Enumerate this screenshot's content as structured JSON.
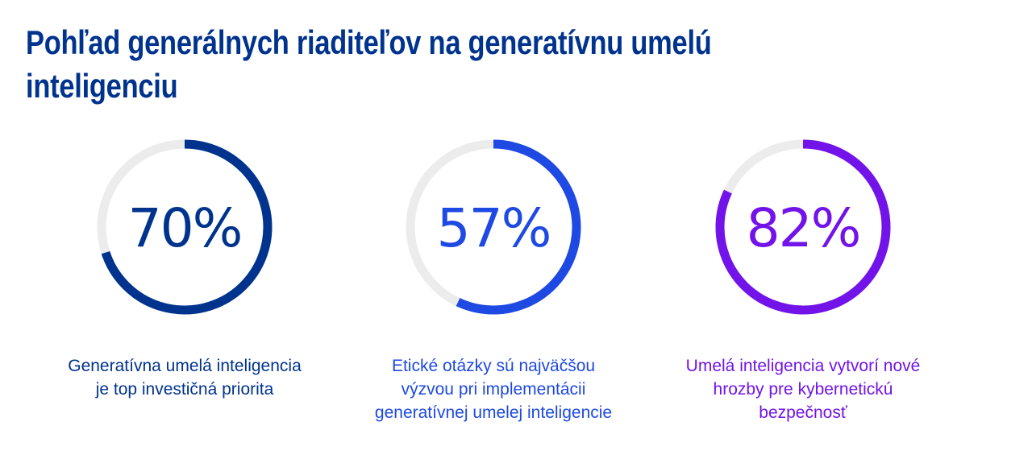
{
  "title": {
    "line1": "Pohľad generálnych riaditeľov na generatívnu umelú",
    "line2": "inteligenciu"
  },
  "chart_data": {
    "type": "donut",
    "track_color": "#ececec",
    "items": [
      {
        "value": 70,
        "label": "70%",
        "caption": [
          "Generatívna umelá inteligencia",
          "je top investičná priorita"
        ],
        "color": "#00338d"
      },
      {
        "value": 57,
        "label": "57%",
        "caption": [
          "Etické otázky sú najväčšou",
          "výzvou pri implementácii",
          "generatívnej umelej inteligencie"
        ],
        "color": "#1e49e2"
      },
      {
        "value": 82,
        "label": "82%",
        "caption": [
          "Umelá inteligencia vytvorí nové",
          "hrozby pre kybernetickú",
          "bezpečnosť"
        ],
        "color": "#7213ea"
      }
    ]
  }
}
